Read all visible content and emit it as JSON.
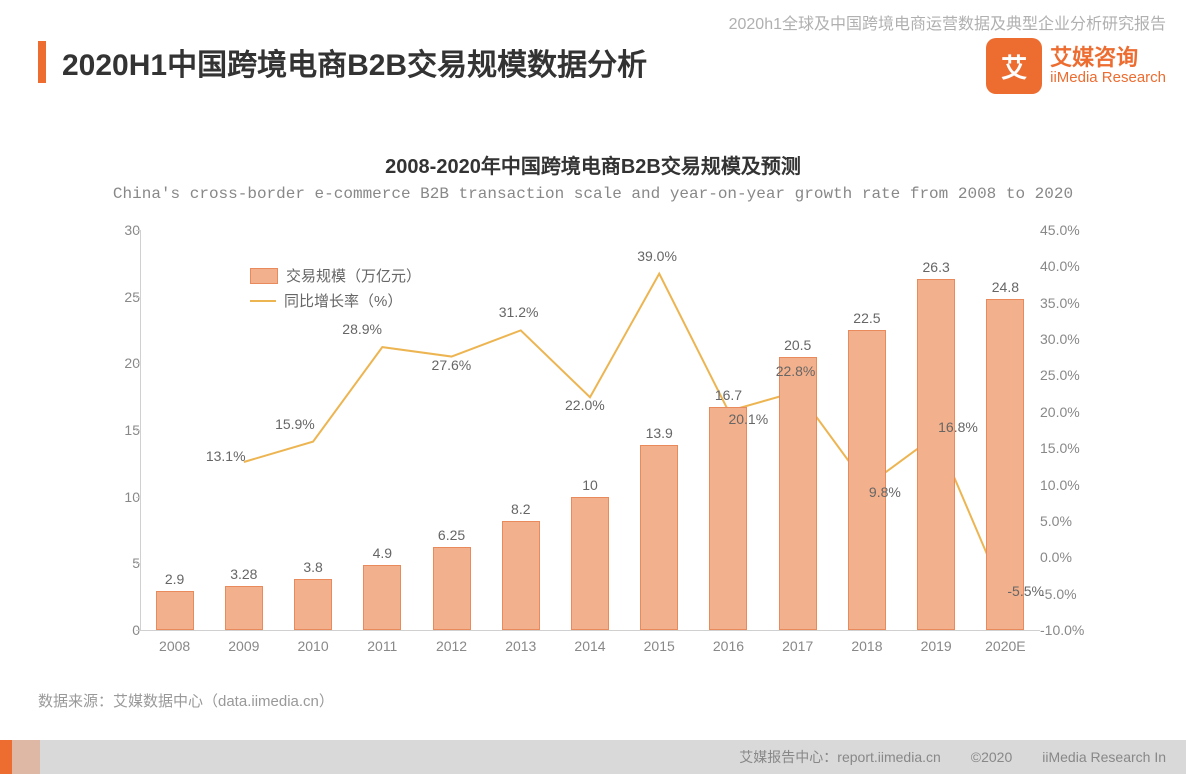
{
  "header": {
    "report_line": "2020h1全球及中国跨境电商运营数据及典型企业分析研究报告"
  },
  "brand": {
    "logo_text": "艾",
    "cn": "艾媒咨询",
    "en": "iiMedia Research",
    "logo_bg": "#ed6c30"
  },
  "title": "2020H1中国跨境电商B2B交易规模数据分析",
  "chart": {
    "title_cn": "2008-2020年中国跨境电商B2B交易规模及预测",
    "title_en": "China's cross-border e-commerce B2B transaction scale and year-on-year growth rate  from 2008 to 2020",
    "type": "combo-bar-line",
    "categories": [
      "2008",
      "2009",
      "2010",
      "2011",
      "2012",
      "2013",
      "2014",
      "2015",
      "2016",
      "2017",
      "2018",
      "2019",
      "2020E"
    ],
    "bar_series": {
      "name": "交易规模（万亿元）",
      "values": [
        2.9,
        3.28,
        3.8,
        4.9,
        6.25,
        8.2,
        10,
        13.9,
        16.7,
        20.5,
        22.5,
        26.3,
        24.8
      ],
      "labels": [
        "2.9",
        "3.28",
        "3.8",
        "4.9",
        "6.25",
        "8.2",
        "10",
        "13.9",
        "16.7",
        "20.5",
        "22.5",
        "26.3",
        "24.8"
      ],
      "fill": "#f2b08c",
      "stroke": "#e88a5b",
      "bar_width_ratio": 0.55
    },
    "line_series": {
      "name": "同比增长率（%）",
      "values": [
        null,
        13.1,
        15.9,
        28.9,
        27.6,
        31.2,
        22.0,
        39.0,
        20.1,
        22.8,
        9.8,
        16.8,
        -5.5
      ],
      "labels": [
        "",
        "13.1%",
        "15.9%",
        "28.9%",
        "27.6%",
        "31.2%",
        "22.0%",
        "39.0%",
        "20.1%",
        "22.8%",
        "9.8%",
        "16.8%",
        "-5.5%"
      ],
      "stroke": "#edb552",
      "stroke_width": 2
    },
    "y_left": {
      "min": 0,
      "max": 30,
      "step": 5,
      "labels": [
        "0",
        "5",
        "10",
        "15",
        "20",
        "25",
        "30"
      ]
    },
    "y_right": {
      "min": -10,
      "max": 45,
      "step": 5,
      "labels": [
        "-10.0%",
        "-5.0%",
        "0.0%",
        "5.0%",
        "10.0%",
        "15.0%",
        "20.0%",
        "25.0%",
        "30.0%",
        "35.0%",
        "40.0%",
        "45.0%"
      ]
    },
    "colors": {
      "axis": "#d0d0d0",
      "text": "#888888",
      "label": "#666666",
      "bg": "#ffffff"
    },
    "legend": {
      "bar": "交易规模（万亿元）",
      "line": "同比增长率（%）"
    }
  },
  "source": "数据来源：艾媒数据中心（data.iimedia.cn）",
  "footer": {
    "center": "艾媒报告中心：report.iimedia.cn",
    "copyright": "©2020",
    "right": "iiMedia Research In"
  }
}
